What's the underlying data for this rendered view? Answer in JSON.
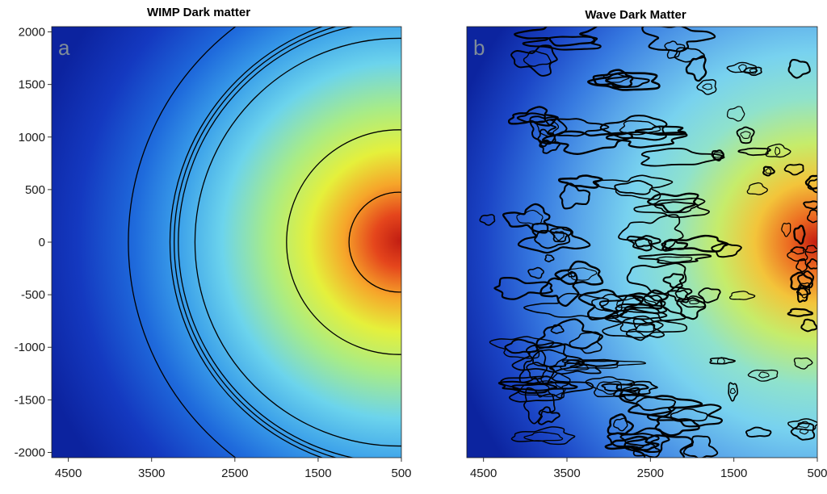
{
  "chart_data": [
    {
      "type": "heatmap",
      "panel_label": "a",
      "title": "WIMP Dark matter",
      "xlim": [
        4700,
        500
      ],
      "ylim": [
        -2050,
        2050
      ],
      "x_ticks": [
        4500,
        3500,
        2500,
        1500,
        500
      ],
      "y_ticks": [
        2000,
        1500,
        1000,
        500,
        0,
        -500,
        -1000,
        -1500,
        -2000
      ],
      "colormap": "jet",
      "peak_at": [
        500,
        0
      ],
      "contour_radii": [
        600,
        1350,
        2450,
        2650,
        2700,
        2750,
        3250
      ]
    },
    {
      "type": "heatmap",
      "panel_label": "b",
      "title": "Wave Dark Matter",
      "xlim": [
        4700,
        500
      ],
      "ylim": [
        -2050,
        2050
      ],
      "x_ticks": [
        4500,
        3500,
        2500,
        1500,
        500
      ],
      "y_ticks": [
        2000,
        1500,
        1000,
        500,
        0,
        -500,
        -1000,
        -1500,
        -2000
      ],
      "colormap": "jet",
      "peak_at": [
        500,
        0
      ],
      "contours": "granular"
    }
  ],
  "colors": {
    "jet_low": "#0a1f9e",
    "jet_mid": "#7fdcf0",
    "jet_high": "#d8351c",
    "contour": "#000000"
  }
}
